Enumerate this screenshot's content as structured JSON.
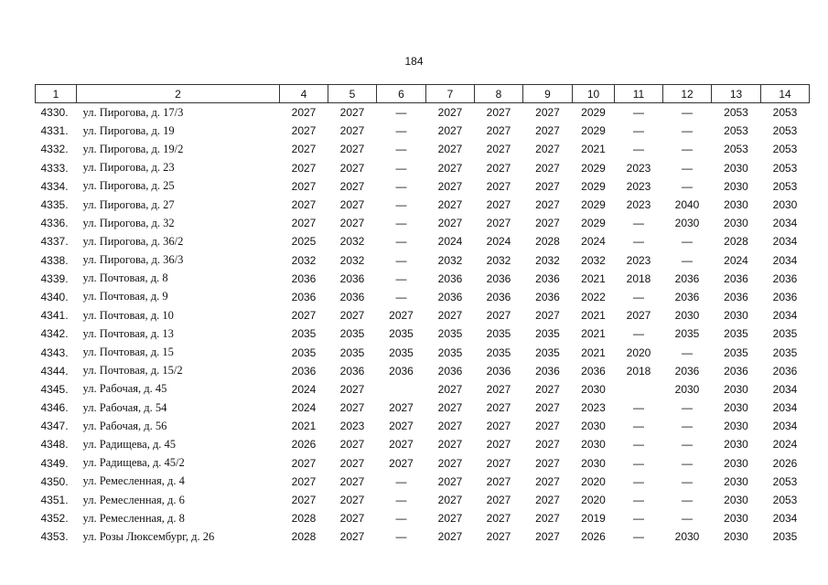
{
  "page_number": "184",
  "table": {
    "header": [
      "1",
      "2",
      "4",
      "5",
      "6",
      "7",
      "8",
      "9",
      "10",
      "11",
      "12",
      "13",
      "14"
    ],
    "rows": [
      [
        "4330.",
        "ул. Пирогова, д. 17/3",
        2027,
        2027,
        "—",
        2027,
        2027,
        2027,
        2029,
        "—",
        "—",
        2053,
        2053
      ],
      [
        "4331.",
        "ул. Пирогова, д. 19",
        2027,
        2027,
        "—",
        2027,
        2027,
        2027,
        2029,
        "—",
        "—",
        2053,
        2053
      ],
      [
        "4332.",
        "ул. Пирогова, д. 19/2",
        2027,
        2027,
        "—",
        2027,
        2027,
        2027,
        2021,
        "—",
        "—",
        2053,
        2053
      ],
      [
        "4333.",
        "ул. Пирогова, д. 23",
        2027,
        2027,
        "—",
        2027,
        2027,
        2027,
        2029,
        2023,
        "—",
        2030,
        2053
      ],
      [
        "4334.",
        "ул. Пирогова, д. 25",
        2027,
        2027,
        "—",
        2027,
        2027,
        2027,
        2029,
        2023,
        "—",
        2030,
        2053
      ],
      [
        "4335.",
        "ул. Пирогова, д. 27",
        2027,
        2027,
        "—",
        2027,
        2027,
        2027,
        2029,
        2023,
        2040,
        2030,
        2030
      ],
      [
        "4336.",
        "ул. Пирогова, д. 32",
        2027,
        2027,
        "—",
        2027,
        2027,
        2027,
        2029,
        "—",
        2030,
        2030,
        2034
      ],
      [
        "4337.",
        "ул. Пирогова, д. 36/2",
        2025,
        2032,
        "—",
        2024,
        2024,
        2028,
        2024,
        "—",
        "—",
        2028,
        2034
      ],
      [
        "4338.",
        "ул. Пирогова, д. 36/3",
        2032,
        2032,
        "—",
        2032,
        2032,
        2032,
        2032,
        2023,
        "—",
        2024,
        2034
      ],
      [
        "4339.",
        "ул. Почтовая, д. 8",
        2036,
        2036,
        "—",
        2036,
        2036,
        2036,
        2021,
        2018,
        2036,
        2036,
        2036
      ],
      [
        "4340.",
        "ул. Почтовая, д. 9",
        2036,
        2036,
        "—",
        2036,
        2036,
        2036,
        2022,
        "—",
        2036,
        2036,
        2036
      ],
      [
        "4341.",
        "ул. Почтовая, д. 10",
        2027,
        2027,
        2027,
        2027,
        2027,
        2027,
        2021,
        2027,
        2030,
        2030,
        2034
      ],
      [
        "4342.",
        "ул. Почтовая, д. 13",
        2035,
        2035,
        2035,
        2035,
        2035,
        2035,
        2021,
        "—",
        2035,
        2035,
        2035
      ],
      [
        "4343.",
        "ул. Почтовая, д. 15",
        2035,
        2035,
        2035,
        2035,
        2035,
        2035,
        2021,
        2020,
        "—",
        2035,
        2035
      ],
      [
        "4344.",
        "ул. Почтовая, д. 15/2",
        2036,
        2036,
        2036,
        2036,
        2036,
        2036,
        2036,
        2018,
        2036,
        2036,
        2036
      ],
      [
        "4345.",
        "ул. Рабочая, д. 45",
        2024,
        2027,
        null,
        2027,
        2027,
        2027,
        2030,
        null,
        2030,
        2030,
        2034
      ],
      [
        "4346.",
        "ул. Рабочая, д. 54",
        2024,
        2027,
        2027,
        2027,
        2027,
        2027,
        2023,
        "—",
        "—",
        2030,
        2034
      ],
      [
        "4347.",
        "ул. Рабочая, д. 56",
        2021,
        2023,
        2027,
        2027,
        2027,
        2027,
        2030,
        "—",
        "—",
        2030,
        2034
      ],
      [
        "4348.",
        "ул. Радищева, д. 45",
        2026,
        2027,
        2027,
        2027,
        2027,
        2027,
        2030,
        "—",
        "—",
        2030,
        2024
      ],
      [
        "4349.",
        "ул. Радищева, д. 45/2",
        2027,
        2027,
        2027,
        2027,
        2027,
        2027,
        2030,
        "—",
        "—",
        2030,
        2026
      ],
      [
        "4350.",
        "ул. Ремесленная, д. 4",
        2027,
        2027,
        "—",
        2027,
        2027,
        2027,
        2020,
        "—",
        "—",
        2030,
        2053
      ],
      [
        "4351.",
        "ул. Ремесленная, д. 6",
        2027,
        2027,
        "—",
        2027,
        2027,
        2027,
        2020,
        "—",
        "—",
        2030,
        2053
      ],
      [
        "4352.",
        "ул. Ремесленная, д. 8",
        2028,
        2027,
        "—",
        2027,
        2027,
        2027,
        2019,
        "—",
        "—",
        2030,
        2034
      ],
      [
        "4353.",
        "ул. Розы Люксембург, д. 26",
        2028,
        2027,
        "—",
        2027,
        2027,
        2027,
        2026,
        "—",
        2030,
        2030,
        2035
      ]
    ]
  }
}
